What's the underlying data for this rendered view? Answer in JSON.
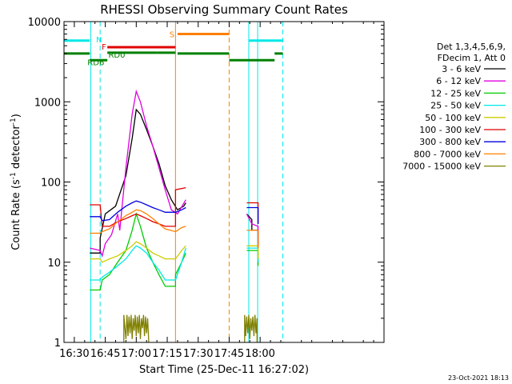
{
  "chart_data": {
    "type": "line",
    "title": "RHESSI Observing Summary Count Rates",
    "xlabel": "Start Time (25-Dec-11 16:27:02)",
    "ylabel": "Count Rate (s",
    "ylabel_parts": [
      "Count Rate (s",
      "-1",
      " detector",
      "-1",
      ")"
    ],
    "x_unit": "minutes after 16:00",
    "xlim": [
      25,
      180
    ],
    "ylim": [
      1,
      10000
    ],
    "yscale": "log",
    "grid": false,
    "x_ticks": [
      {
        "value": 30,
        "label": "16:30"
      },
      {
        "value": 45,
        "label": "16:45"
      },
      {
        "value": 60,
        "label": "17:00"
      },
      {
        "value": 75,
        "label": "17:15"
      },
      {
        "value": 90,
        "label": "17:30"
      },
      {
        "value": 105,
        "label": "17:45"
      },
      {
        "value": 120,
        "label": "18:00"
      }
    ],
    "y_ticks": [
      {
        "value": 1,
        "label": "1"
      },
      {
        "value": 10,
        "label": "10"
      },
      {
        "value": 100,
        "label": "100"
      },
      {
        "value": 1000,
        "label": "1000"
      },
      {
        "value": 10000,
        "label": "10000"
      }
    ],
    "legend": {
      "placement": "right",
      "header": [
        "Det 1,3,4,5,6,9,",
        "FDecim 1, Att 0"
      ],
      "entries": [
        {
          "label": "3 - 6 keV",
          "color": "#000000"
        },
        {
          "label": "6 - 12 keV",
          "color": "#e000e0"
        },
        {
          "label": "12 - 25 keV",
          "color": "#00cc00"
        },
        {
          "label": "25 - 50 keV",
          "color": "#00e8e8"
        },
        {
          "label": "50 - 100 keV",
          "color": "#cccc00"
        },
        {
          "label": "100 - 300 keV",
          "color": "#e00000"
        },
        {
          "label": "300 - 800 keV",
          "color": "#0000e0"
        },
        {
          "label": "800 - 7000 keV",
          "color": "#ff8000"
        },
        {
          "label": "7000 - 15000 keV",
          "color": "#808000"
        }
      ]
    },
    "series": [
      {
        "name": "3 - 6 keV",
        "color": "#000000",
        "segments": [
          [
            [
              37.5,
              13
            ],
            [
              42.5,
              13
            ],
            [
              42.5,
              20
            ],
            [
              45,
              40
            ],
            [
              50,
              50
            ],
            [
              55,
              120
            ],
            [
              58,
              350
            ],
            [
              60,
              800
            ],
            [
              62,
              700
            ],
            [
              65,
              450
            ],
            [
              68,
              280
            ],
            [
              71,
              170
            ],
            [
              74,
              90
            ],
            [
              77,
              60
            ],
            [
              80,
              45
            ],
            [
              83,
              50
            ],
            [
              84,
              55
            ]
          ],
          [
            [
              113.5,
              40
            ],
            [
              116,
              34
            ],
            [
              116,
              25
            ],
            [
              119,
              25
            ],
            [
              119,
              15
            ]
          ]
        ]
      },
      {
        "name": "6 - 12 keV",
        "color": "#e000e0",
        "segments": [
          [
            [
              37.5,
              15
            ],
            [
              42.5,
              14
            ],
            [
              43.5,
              12
            ],
            [
              45,
              17
            ],
            [
              48,
              22
            ],
            [
              51,
              40
            ],
            [
              52,
              25
            ],
            [
              55,
              150
            ],
            [
              58,
              700
            ],
            [
              60,
              1350
            ],
            [
              62,
              1000
            ],
            [
              65,
              500
            ],
            [
              68,
              280
            ],
            [
              71,
              150
            ],
            [
              74,
              80
            ],
            [
              77,
              45
            ],
            [
              80,
              40
            ],
            [
              84,
              60
            ]
          ],
          [
            [
              113.5,
              40
            ],
            [
              116,
              30
            ],
            [
              119,
              28
            ],
            [
              119,
              15
            ]
          ]
        ]
      },
      {
        "name": "12 - 25 keV",
        "color": "#00cc00",
        "segments": [
          [
            [
              37.5,
              4.5
            ],
            [
              42.5,
              4.5
            ],
            [
              43.5,
              6
            ],
            [
              47,
              7
            ],
            [
              51,
              10
            ],
            [
              55,
              14
            ],
            [
              58,
              25
            ],
            [
              60,
              40
            ],
            [
              62,
              28
            ],
            [
              65,
              15
            ],
            [
              68,
              10
            ],
            [
              71,
              7
            ],
            [
              74,
              5
            ],
            [
              79,
              5
            ],
            [
              79,
              7
            ],
            [
              82,
              10
            ],
            [
              84,
              13
            ]
          ],
          [
            [
              113.5,
              14
            ],
            [
              116,
              14
            ],
            [
              119,
              14
            ],
            [
              119,
              9
            ]
          ]
        ]
      },
      {
        "name": "25 - 50 keV",
        "color": "#00e8e8",
        "segments": [
          [
            [
              37.5,
              6
            ],
            [
              42.5,
              6
            ],
            [
              43.5,
              6.5
            ],
            [
              47,
              7.5
            ],
            [
              51,
              9
            ],
            [
              55,
              11
            ],
            [
              58,
              14
            ],
            [
              60,
              16
            ],
            [
              62,
              15
            ],
            [
              65,
              13
            ],
            [
              68,
              10
            ],
            [
              71,
              8
            ],
            [
              74,
              6
            ],
            [
              79,
              6
            ],
            [
              82,
              10
            ],
            [
              84,
              15
            ]
          ],
          [
            [
              113.5,
              15
            ],
            [
              116,
              15
            ],
            [
              119,
              15
            ],
            [
              119,
              10
            ]
          ]
        ]
      },
      {
        "name": "50 - 100 keV",
        "color": "#cccc00",
        "segments": [
          [
            [
              37.5,
              11
            ],
            [
              42.5,
              11
            ],
            [
              43.5,
              10
            ],
            [
              47,
              11
            ],
            [
              51,
              12
            ],
            [
              55,
              14
            ],
            [
              58,
              16
            ],
            [
              60,
              18
            ],
            [
              62,
              17
            ],
            [
              65,
              15
            ],
            [
              68,
              13
            ],
            [
              71,
              12
            ],
            [
              74,
              11
            ],
            [
              79,
              11
            ],
            [
              82,
              14
            ],
            [
              84,
              16
            ]
          ],
          [
            [
              113.5,
              16
            ],
            [
              116,
              16
            ],
            [
              119,
              16
            ],
            [
              119,
              11
            ]
          ]
        ]
      },
      {
        "name": "100 - 300 keV",
        "color": "#e00000",
        "segments": [
          [
            [
              37.5,
              52
            ],
            [
              42.5,
              52
            ],
            [
              43.5,
              28
            ],
            [
              47,
              28
            ],
            [
              51,
              32
            ],
            [
              55,
              35
            ],
            [
              58,
              38
            ],
            [
              60,
              40
            ],
            [
              62,
              38
            ],
            [
              65,
              35
            ],
            [
              68,
              32
            ],
            [
              71,
              30
            ],
            [
              74,
              28
            ],
            [
              79,
              28
            ],
            [
              79,
              80
            ],
            [
              84,
              85
            ]
          ],
          [
            [
              113.5,
              55
            ],
            [
              116,
              55
            ],
            [
              119,
              55
            ],
            [
              119,
              30
            ]
          ]
        ]
      },
      {
        "name": "300 - 800 keV",
        "color": "#0000e0",
        "segments": [
          [
            [
              37.5,
              37
            ],
            [
              42.5,
              37
            ],
            [
              43.5,
              33
            ],
            [
              47,
              34
            ],
            [
              51,
              42
            ],
            [
              55,
              50
            ],
            [
              58,
              55
            ],
            [
              60,
              58
            ],
            [
              62,
              56
            ],
            [
              65,
              52
            ],
            [
              68,
              48
            ],
            [
              71,
              45
            ],
            [
              74,
              42
            ],
            [
              79,
              42
            ],
            [
              82,
              45
            ],
            [
              84,
              48
            ]
          ],
          [
            [
              113.5,
              48
            ],
            [
              116,
              48
            ],
            [
              119,
              48
            ],
            [
              119,
              30
            ]
          ]
        ]
      },
      {
        "name": "800 - 7000 keV",
        "color": "#ff8000",
        "segments": [
          [
            [
              37.5,
              23
            ],
            [
              42.5,
              23
            ],
            [
              43.5,
              24
            ],
            [
              47,
              26
            ],
            [
              51,
              32
            ],
            [
              55,
              38
            ],
            [
              58,
              42
            ],
            [
              60,
              45
            ],
            [
              62,
              44
            ],
            [
              65,
              40
            ],
            [
              68,
              35
            ],
            [
              71,
              30
            ],
            [
              74,
              26
            ],
            [
              79,
              24
            ],
            [
              82,
              27
            ],
            [
              84,
              28
            ]
          ],
          [
            [
              113.5,
              25
            ],
            [
              116,
              25
            ],
            [
              119,
              25
            ],
            [
              119,
              15
            ]
          ]
        ]
      },
      {
        "name": "7000 - 15000 keV",
        "color": "#808000",
        "segments": [
          [
            [
              54,
              1
            ],
            [
              54,
              2.2
            ],
            [
              55,
              1.1
            ],
            [
              55.5,
              2.2
            ],
            [
              56,
              1.2
            ],
            [
              56.5,
              2.1
            ],
            [
              57,
              1.3
            ],
            [
              57.5,
              2.2
            ],
            [
              58,
              1.1
            ],
            [
              58.5,
              2.0
            ],
            [
              59,
              1.4
            ],
            [
              59.5,
              2.2
            ],
            [
              60,
              1.2
            ],
            [
              60.5,
              2.1
            ],
            [
              61,
              1.3
            ],
            [
              61.5,
              2.2
            ],
            [
              62,
              1.1
            ],
            [
              62.5,
              2.0
            ],
            [
              63,
              1.5
            ],
            [
              63.5,
              2.2
            ],
            [
              64,
              1.2
            ],
            [
              64.5,
              2.1
            ],
            [
              65,
              1.3
            ],
            [
              65.5,
              2.0
            ],
            [
              66,
              1.1
            ],
            [
              66,
              1
            ]
          ],
          [
            [
              112.5,
              1
            ],
            [
              112.5,
              2.2
            ],
            [
              113,
              1.2
            ],
            [
              113.5,
              2.1
            ],
            [
              114,
              1.3
            ],
            [
              114.5,
              2.2
            ],
            [
              115,
              1.1
            ],
            [
              115.5,
              2.0
            ],
            [
              116,
              1.4
            ],
            [
              116.5,
              2.1
            ],
            [
              117,
              1.2
            ],
            [
              117.5,
              2.2
            ],
            [
              118,
              1.3
            ],
            [
              118.5,
              2.0
            ],
            [
              118.5,
              1
            ]
          ]
        ]
      }
    ],
    "flags": [
      {
        "label": "N",
        "color": "#00e8e8",
        "segments": [
          [
            25,
            37.5,
            5800
          ],
          [
            114.5,
            131,
            5800
          ]
        ]
      },
      {
        "label": "S",
        "color": "#ff8000",
        "segments": [
          [
            80,
            105,
            7000
          ]
        ]
      },
      {
        "label": "F",
        "color": "#e00000",
        "segments": [
          [
            46,
            79,
            4800
          ]
        ]
      },
      {
        "label": "RD0",
        "color": "#008000",
        "segments": [
          [
            46,
            70,
            4100
          ],
          [
            70,
            79,
            4100
          ]
        ]
      },
      {
        "label": "RD6",
        "color": "#008000",
        "segments": [
          [
            25,
            37.5,
            4000
          ],
          [
            37.5,
            46,
            3300
          ],
          [
            80,
            105,
            4000
          ],
          [
            105,
            127,
            3300
          ],
          [
            127,
            131,
            4000
          ]
        ]
      }
    ],
    "vertical_lines": [
      {
        "x": 38.0,
        "color": "#00e8e8",
        "style": "solid"
      },
      {
        "x": 42.5,
        "color": "#00e8e8",
        "style": "dashed"
      },
      {
        "x": 79.0,
        "color": "#ff8000",
        "style": "solid"
      },
      {
        "x": 105.0,
        "color": "#ff8000",
        "style": "dashed"
      },
      {
        "x": 114.5,
        "color": "#00e8e8",
        "style": "solid"
      },
      {
        "x": 118.8,
        "color": "#00e8e8",
        "style": "solid"
      },
      {
        "x": 131.0,
        "color": "#00e8e8",
        "style": "dashed"
      }
    ],
    "footer_date": "23-Oct-2021 18:13"
  }
}
